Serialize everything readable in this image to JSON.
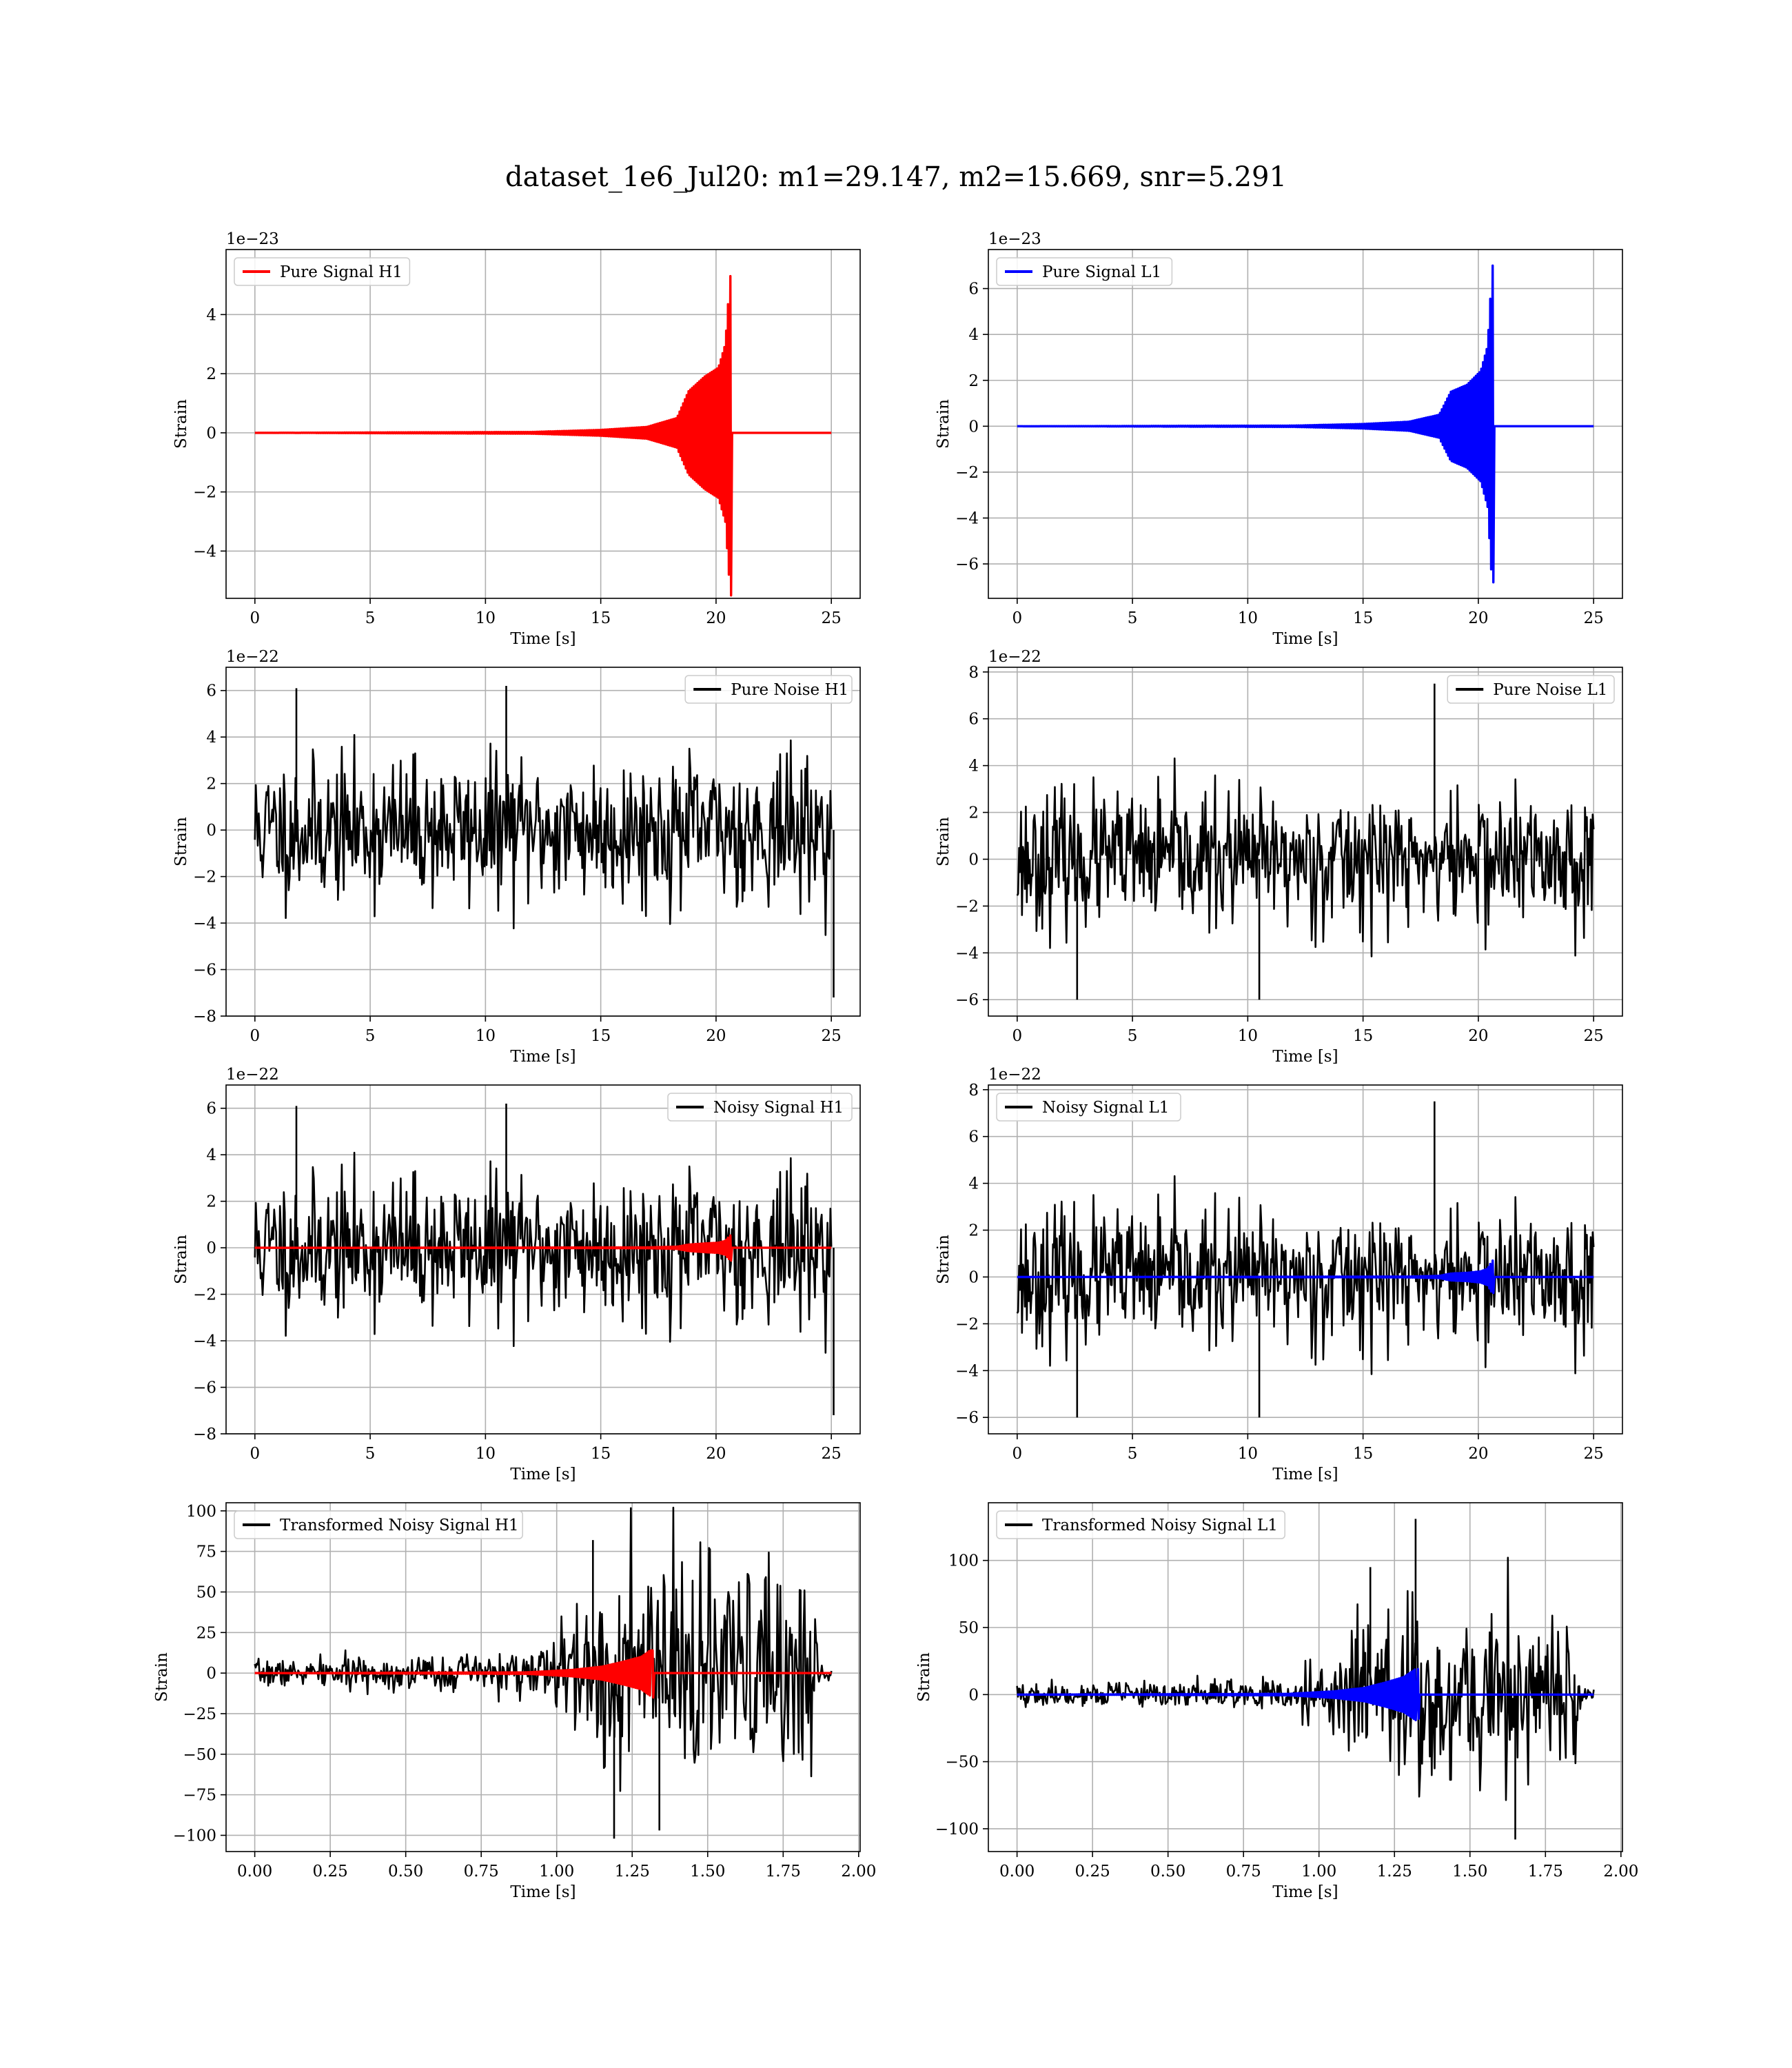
{
  "figure": {
    "title": "dataset_1e6_Jul20: m1=29.147, m2=15.669, snr=5.291"
  },
  "chart_data": [
    {
      "id": "pure-signal-h1",
      "type": "line",
      "xlabel": "Time [s]",
      "ylabel": "Strain",
      "offset_text": "1e−23",
      "xlim": [
        -1.25,
        26.25
      ],
      "ylim": [
        -5.6,
        6.2
      ],
      "xticks": [
        0,
        5,
        10,
        15,
        20,
        25
      ],
      "xtick_labels": [
        "0",
        "5",
        "10",
        "15",
        "20",
        "25"
      ],
      "yticks": [
        -4,
        -2,
        0,
        2,
        4
      ],
      "ytick_labels": [
        "−4",
        "−2",
        "0",
        "2",
        "4"
      ],
      "grid": true,
      "legend_position": "upper-left",
      "series": [
        {
          "name": "Pure Signal H1",
          "color": "#ff0000",
          "kind": "chirp",
          "t_start": 0,
          "t_end": 25,
          "t_merger": 20.65,
          "envelope": [
            [
              0,
              0
            ],
            [
              12,
              0.03
            ],
            [
              15,
              0.1
            ],
            [
              17,
              0.2
            ],
            [
              18.3,
              0.5
            ],
            [
              18.8,
              1.4
            ],
            [
              19.5,
              1.9
            ],
            [
              20.1,
              2.2
            ],
            [
              20.4,
              3.0
            ],
            [
              20.6,
              5.3
            ]
          ],
          "peak_pos": 5.3,
          "peak_neg": -5.5
        }
      ]
    },
    {
      "id": "pure-signal-l1",
      "type": "line",
      "xlabel": "Time [s]",
      "ylabel": "Strain",
      "offset_text": "1e−23",
      "xlim": [
        -1.25,
        26.25
      ],
      "ylim": [
        -7.5,
        7.7
      ],
      "xticks": [
        0,
        5,
        10,
        15,
        20,
        25
      ],
      "xtick_labels": [
        "0",
        "5",
        "10",
        "15",
        "20",
        "25"
      ],
      "yticks": [
        -6,
        -4,
        -2,
        0,
        2,
        4,
        6
      ],
      "ytick_labels": [
        "−6",
        "−4",
        "−2",
        "0",
        "2",
        "4",
        "6"
      ],
      "grid": true,
      "legend_position": "upper-left",
      "series": [
        {
          "name": "Pure Signal L1",
          "color": "#0000ff",
          "kind": "chirp",
          "t_start": 0,
          "t_end": 25,
          "t_merger": 20.65,
          "envelope": [
            [
              0,
              0
            ],
            [
              12,
              0.03
            ],
            [
              15,
              0.1
            ],
            [
              17,
              0.2
            ],
            [
              18.3,
              0.5
            ],
            [
              18.8,
              1.5
            ],
            [
              19.5,
              1.8
            ],
            [
              20.1,
              2.4
            ],
            [
              20.4,
              3.5
            ],
            [
              20.6,
              7.0
            ]
          ],
          "peak_pos": 7.0,
          "peak_neg": -6.8
        }
      ]
    },
    {
      "id": "pure-noise-h1",
      "type": "line",
      "xlabel": "Time [s]",
      "ylabel": "Strain",
      "offset_text": "1e−22",
      "xlim": [
        -1.25,
        26.25
      ],
      "ylim": [
        -8,
        7
      ],
      "xticks": [
        0,
        5,
        10,
        15,
        20,
        25
      ],
      "xtick_labels": [
        "0",
        "5",
        "10",
        "15",
        "20",
        "25"
      ],
      "yticks": [
        -8,
        -6,
        -4,
        -2,
        0,
        2,
        4,
        6
      ],
      "ytick_labels": [
        "−8",
        "−6",
        "−4",
        "−2",
        "0",
        "2",
        "4",
        "6"
      ],
      "grid": true,
      "legend_position": "upper-right",
      "series": [
        {
          "name": "Pure Noise H1",
          "color": "#000000",
          "kind": "noise",
          "t_start": 0,
          "t_end": 25,
          "seed": 11,
          "sigma": 1.5,
          "spikes": [
            [
              25.1,
              -7.2
            ],
            [
              10.9,
              6.2
            ],
            [
              1.8,
              6.1
            ]
          ]
        }
      ]
    },
    {
      "id": "pure-noise-l1",
      "type": "line",
      "xlabel": "Time [s]",
      "ylabel": "Strain",
      "offset_text": "1e−22",
      "xlim": [
        -1.25,
        26.25
      ],
      "ylim": [
        -6.7,
        8.2
      ],
      "xticks": [
        0,
        5,
        10,
        15,
        20,
        25
      ],
      "xtick_labels": [
        "0",
        "5",
        "10",
        "15",
        "20",
        "25"
      ],
      "yticks": [
        -6,
        -4,
        -2,
        0,
        2,
        4,
        6,
        8
      ],
      "ytick_labels": [
        "−6",
        "−4",
        "−2",
        "0",
        "2",
        "4",
        "6",
        "8"
      ],
      "grid": true,
      "legend_position": "upper-right",
      "series": [
        {
          "name": "Pure Noise L1",
          "color": "#000000",
          "kind": "noise",
          "t_start": 0,
          "t_end": 25,
          "seed": 23,
          "sigma": 1.4,
          "spikes": [
            [
              18.1,
              7.5
            ],
            [
              10.5,
              -6.0
            ],
            [
              2.6,
              -6.0
            ]
          ]
        }
      ]
    },
    {
      "id": "noisy-signal-h1",
      "type": "line",
      "xlabel": "Time [s]",
      "ylabel": "Strain",
      "offset_text": "1e−22",
      "xlim": [
        -1.25,
        26.25
      ],
      "ylim": [
        -8,
        7
      ],
      "xticks": [
        0,
        5,
        10,
        15,
        20,
        25
      ],
      "xtick_labels": [
        "0",
        "5",
        "10",
        "15",
        "20",
        "25"
      ],
      "yticks": [
        -8,
        -6,
        -4,
        -2,
        0,
        2,
        4,
        6
      ],
      "ytick_labels": [
        "−8",
        "−6",
        "−4",
        "−2",
        "0",
        "2",
        "4",
        "6"
      ],
      "grid": true,
      "legend_position": "upper-right",
      "series": [
        {
          "name": "Noisy Signal H1",
          "color": "#000000",
          "kind": "noise",
          "t_start": 0,
          "t_end": 25,
          "seed": 11,
          "sigma": 1.5,
          "spikes": [
            [
              25.1,
              -7.2
            ],
            [
              10.9,
              6.2
            ],
            [
              1.8,
              6.1
            ]
          ]
        },
        {
          "name": "",
          "color": "#ff0000",
          "kind": "chirp",
          "t_start": 0,
          "t_end": 25,
          "t_merger": 20.65,
          "envelope": [
            [
              0,
              0
            ],
            [
              17,
              0.02
            ],
            [
              18.3,
              0.05
            ],
            [
              18.8,
              0.14
            ],
            [
              19.5,
              0.19
            ],
            [
              20.1,
              0.22
            ],
            [
              20.4,
              0.3
            ],
            [
              20.6,
              0.53
            ]
          ],
          "peak_pos": 0.53,
          "peak_neg": -0.55
        }
      ]
    },
    {
      "id": "noisy-signal-l1",
      "type": "line",
      "xlabel": "Time [s]",
      "ylabel": "Strain",
      "offset_text": "1e−22",
      "xlim": [
        -1.25,
        26.25
      ],
      "ylim": [
        -6.7,
        8.2
      ],
      "xticks": [
        0,
        5,
        10,
        15,
        20,
        25
      ],
      "xtick_labels": [
        "0",
        "5",
        "10",
        "15",
        "20",
        "25"
      ],
      "yticks": [
        -6,
        -4,
        -2,
        0,
        2,
        4,
        6,
        8
      ],
      "ytick_labels": [
        "−6",
        "−4",
        "−2",
        "0",
        "2",
        "4",
        "6",
        "8"
      ],
      "grid": true,
      "legend_position": "upper-left",
      "series": [
        {
          "name": "Noisy Signal L1",
          "color": "#000000",
          "kind": "noise",
          "t_start": 0,
          "t_end": 25,
          "seed": 23,
          "sigma": 1.4,
          "spikes": [
            [
              18.1,
              7.5
            ],
            [
              10.5,
              -6.0
            ],
            [
              2.6,
              -6.0
            ]
          ]
        },
        {
          "name": "",
          "color": "#0000ff",
          "kind": "chirp",
          "t_start": 0,
          "t_end": 25,
          "t_merger": 20.65,
          "envelope": [
            [
              0,
              0
            ],
            [
              17,
              0.02
            ],
            [
              18.3,
              0.05
            ],
            [
              18.8,
              0.15
            ],
            [
              19.5,
              0.18
            ],
            [
              20.1,
              0.24
            ],
            [
              20.4,
              0.35
            ],
            [
              20.6,
              0.7
            ]
          ],
          "peak_pos": 0.7,
          "peak_neg": -0.68
        }
      ]
    },
    {
      "id": "transformed-noisy-signal-h1",
      "type": "line",
      "xlabel": "Time [s]",
      "ylabel": "Strain",
      "offset_text": "",
      "xlim": [
        -0.095,
        2.005
      ],
      "ylim": [
        -110,
        105
      ],
      "xticks": [
        0,
        0.25,
        0.5,
        0.75,
        1.0,
        1.25,
        1.5,
        1.75,
        2.0
      ],
      "xtick_labels": [
        "0.00",
        "0.25",
        "0.50",
        "0.75",
        "1.00",
        "1.25",
        "1.50",
        "1.75",
        "2.00"
      ],
      "yticks": [
        -100,
        -75,
        -50,
        -25,
        0,
        25,
        50,
        75,
        100
      ],
      "ytick_labels": [
        "−100",
        "−75",
        "−50",
        "−25",
        "0",
        "25",
        "50",
        "75",
        "100"
      ],
      "grid": true,
      "legend_position": "upper-left",
      "series": [
        {
          "name": "Transformed Noisy Signal H1",
          "color": "#000000",
          "kind": "whitened",
          "t_start": 0,
          "t_end": 1.91,
          "seed": 7,
          "envelope": [
            [
              0,
              7
            ],
            [
              0.5,
              9
            ],
            [
              0.9,
              12
            ],
            [
              1.0,
              22
            ],
            [
              1.08,
              35
            ],
            [
              1.12,
              60
            ],
            [
              1.5,
              60
            ],
            [
              1.85,
              55
            ],
            [
              1.87,
              6
            ],
            [
              1.91,
              5
            ]
          ],
          "spikes": [
            [
              1.19,
              -102
            ],
            [
              1.34,
              -97
            ],
            [
              1.12,
              82
            ]
          ]
        },
        {
          "name": "",
          "color": "#ff0000",
          "kind": "chirp",
          "t_start": 0,
          "t_end": 1.91,
          "t_merger": 1.32,
          "envelope": [
            [
              0,
              0
            ],
            [
              0.9,
              0.5
            ],
            [
              1.05,
              2
            ],
            [
              1.15,
              4
            ],
            [
              1.22,
              7
            ],
            [
              1.28,
              10
            ],
            [
              1.31,
              14
            ]
          ],
          "peak_pos": 14,
          "peak_neg": -15
        }
      ]
    },
    {
      "id": "transformed-noisy-signal-l1",
      "type": "line",
      "xlabel": "Time [s]",
      "ylabel": "Strain",
      "offset_text": "",
      "xlim": [
        -0.095,
        2.005
      ],
      "ylim": [
        -117,
        143
      ],
      "xticks": [
        0,
        0.25,
        0.5,
        0.75,
        1.0,
        1.25,
        1.5,
        1.75,
        2.0
      ],
      "xtick_labels": [
        "0.00",
        "0.25",
        "0.50",
        "0.75",
        "1.00",
        "1.25",
        "1.50",
        "1.75",
        "2.00"
      ],
      "yticks": [
        -100,
        -50,
        0,
        50,
        100
      ],
      "ytick_labels": [
        "−100",
        "−50",
        "0",
        "50",
        "100"
      ],
      "grid": true,
      "legend_position": "upper-left",
      "series": [
        {
          "name": "Transformed Noisy Signal L1",
          "color": "#000000",
          "kind": "whitened",
          "t_start": 0,
          "t_end": 1.91,
          "seed": 19,
          "envelope": [
            [
              0,
              7
            ],
            [
              0.5,
              9
            ],
            [
              0.9,
              12
            ],
            [
              1.0,
              22
            ],
            [
              1.1,
              35
            ],
            [
              1.13,
              60
            ],
            [
              1.5,
              60
            ],
            [
              1.85,
              55
            ],
            [
              1.87,
              6
            ],
            [
              1.91,
              5
            ]
          ],
          "spikes": [
            [
              1.65,
              -108
            ],
            [
              1.32,
              131
            ],
            [
              1.17,
              95
            ]
          ]
        },
        {
          "name": "",
          "color": "#0000ff",
          "kind": "chirp",
          "t_start": 0,
          "t_end": 1.91,
          "t_merger": 1.33,
          "envelope": [
            [
              0,
              0
            ],
            [
              0.9,
              0.6
            ],
            [
              1.05,
              2.5
            ],
            [
              1.15,
              5
            ],
            [
              1.22,
              9
            ],
            [
              1.28,
              13
            ],
            [
              1.32,
              19
            ]
          ],
          "peak_pos": 19,
          "peak_neg": -18
        }
      ]
    }
  ]
}
